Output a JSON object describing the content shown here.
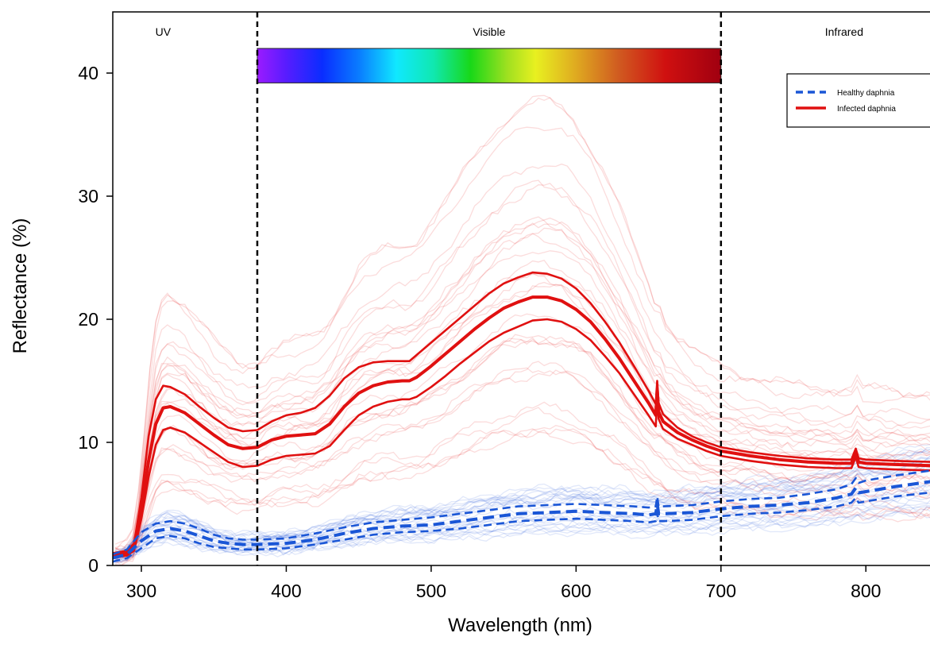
{
  "chart_data": {
    "type": "line",
    "title": "",
    "xlabel": "Wavelength (nm)",
    "ylabel": "Reflectance (%)",
    "xlim": [
      280,
      850
    ],
    "ylim": [
      0,
      45
    ],
    "xticks": [
      300,
      400,
      500,
      600,
      700,
      800
    ],
    "yticks": [
      0,
      10,
      20,
      30,
      40
    ],
    "grid": false,
    "legend_position": "top-right",
    "region_boundaries": [
      380,
      700
    ],
    "regions": [
      {
        "label": "UV",
        "x": 315
      },
      {
        "label": "Visible",
        "x": 540
      },
      {
        "label": "Infrared",
        "x": 785
      }
    ],
    "spectrum_bar": {
      "x_start": 380,
      "x_end": 700,
      "y_bottom": 39.2,
      "y_top": 42
    },
    "legend": [
      {
        "label": "Healthy daphnia",
        "color": "#1a56d6",
        "style": "dashed"
      },
      {
        "label": "Infected daphnia",
        "color": "#e01010",
        "style": "solid"
      }
    ],
    "series": [
      {
        "name": "Infected daphnia",
        "role": "mean",
        "color": "#e01010",
        "style": "solid",
        "x": [
          280,
          290,
          295,
          300,
          305,
          310,
          315,
          320,
          330,
          340,
          350,
          360,
          370,
          380,
          390,
          400,
          410,
          420,
          430,
          440,
          450,
          460,
          470,
          480,
          485,
          490,
          500,
          510,
          520,
          530,
          540,
          550,
          560,
          570,
          580,
          590,
          600,
          610,
          620,
          630,
          640,
          650,
          655,
          656,
          657,
          660,
          670,
          680,
          690,
          700,
          720,
          740,
          760,
          780,
          790,
          793,
          795,
          800,
          820,
          850
        ],
        "y": [
          0.8,
          1.0,
          1.5,
          4.5,
          8.5,
          11.5,
          12.8,
          12.9,
          12.4,
          11.5,
          10.6,
          9.8,
          9.5,
          9.6,
          10.2,
          10.5,
          10.6,
          10.7,
          11.5,
          12.9,
          14.0,
          14.6,
          14.9,
          15.0,
          15.0,
          15.3,
          16.2,
          17.2,
          18.2,
          19.2,
          20.1,
          20.9,
          21.4,
          21.8,
          21.8,
          21.5,
          20.8,
          19.8,
          18.4,
          16.8,
          15.0,
          13.2,
          12.2,
          14.3,
          12.5,
          11.7,
          10.8,
          10.2,
          9.7,
          9.3,
          8.9,
          8.6,
          8.4,
          8.3,
          8.3,
          9.2,
          8.4,
          8.3,
          8.2,
          8.1
        ]
      },
      {
        "name": "Infected daphnia",
        "role": "upper",
        "color": "#e01010",
        "style": "solid",
        "x": [
          280,
          290,
          295,
          300,
          305,
          310,
          315,
          320,
          330,
          340,
          350,
          360,
          370,
          380,
          390,
          400,
          410,
          420,
          430,
          440,
          450,
          460,
          470,
          480,
          485,
          490,
          500,
          510,
          520,
          530,
          540,
          550,
          560,
          570,
          580,
          590,
          600,
          610,
          620,
          630,
          640,
          650,
          655,
          656,
          657,
          660,
          670,
          680,
          690,
          700,
          720,
          740,
          760,
          780,
          790,
          793,
          795,
          800,
          820,
          850
        ],
        "y": [
          1.0,
          1.2,
          1.8,
          5.5,
          10.5,
          13.5,
          14.6,
          14.5,
          13.9,
          12.9,
          12.0,
          11.2,
          10.9,
          11.0,
          11.7,
          12.2,
          12.4,
          12.8,
          13.8,
          15.2,
          16.1,
          16.5,
          16.6,
          16.6,
          16.6,
          17.1,
          18.1,
          19.1,
          20.1,
          21.1,
          22.1,
          22.9,
          23.4,
          23.8,
          23.7,
          23.3,
          22.5,
          21.3,
          19.8,
          18.1,
          16.2,
          14.2,
          13.1,
          15.0,
          13.2,
          12.3,
          11.2,
          10.5,
          10.0,
          9.6,
          9.2,
          8.9,
          8.7,
          8.6,
          8.6,
          9.5,
          8.7,
          8.6,
          8.5,
          8.4
        ]
      },
      {
        "name": "Infected daphnia",
        "role": "lower",
        "color": "#e01010",
        "style": "solid",
        "x": [
          280,
          290,
          295,
          300,
          305,
          310,
          315,
          320,
          330,
          340,
          350,
          360,
          370,
          380,
          390,
          400,
          410,
          420,
          430,
          440,
          450,
          460,
          470,
          480,
          485,
          490,
          500,
          510,
          520,
          530,
          540,
          550,
          560,
          570,
          580,
          590,
          600,
          610,
          620,
          630,
          640,
          650,
          655,
          656,
          657,
          660,
          670,
          680,
          690,
          700,
          720,
          740,
          760,
          780,
          790,
          793,
          795,
          800,
          820,
          850
        ],
        "y": [
          0.6,
          0.8,
          1.2,
          3.8,
          7.2,
          9.8,
          11.0,
          11.2,
          10.8,
          10.0,
          9.2,
          8.4,
          8.0,
          8.1,
          8.6,
          8.9,
          9.0,
          9.1,
          9.7,
          11.0,
          12.2,
          12.9,
          13.3,
          13.5,
          13.5,
          13.7,
          14.5,
          15.4,
          16.4,
          17.3,
          18.2,
          18.9,
          19.4,
          19.9,
          20.0,
          19.8,
          19.2,
          18.3,
          17.0,
          15.6,
          13.9,
          12.2,
          11.3,
          13.7,
          11.9,
          11.1,
          10.3,
          9.8,
          9.3,
          8.9,
          8.5,
          8.2,
          8.0,
          7.9,
          7.9,
          8.8,
          8.0,
          7.9,
          7.8,
          7.7
        ]
      },
      {
        "name": "Healthy daphnia",
        "role": "mean",
        "color": "#1a56d6",
        "style": "dashed",
        "x": [
          280,
          290,
          300,
          310,
          320,
          330,
          340,
          350,
          360,
          370,
          380,
          400,
          420,
          440,
          460,
          480,
          500,
          520,
          540,
          560,
          580,
          600,
          620,
          640,
          650,
          655,
          656,
          657,
          660,
          680,
          700,
          720,
          740,
          760,
          780,
          790,
          793,
          795,
          800,
          820,
          850
        ],
        "y": [
          0.6,
          0.9,
          2.0,
          2.8,
          3.0,
          2.8,
          2.4,
          2.0,
          1.8,
          1.7,
          1.7,
          1.8,
          2.1,
          2.6,
          3.0,
          3.2,
          3.3,
          3.6,
          3.9,
          4.2,
          4.3,
          4.4,
          4.3,
          4.2,
          4.1,
          4.2,
          5.0,
          4.2,
          4.2,
          4.3,
          4.6,
          4.8,
          4.9,
          5.1,
          5.5,
          5.8,
          6.3,
          5.9,
          6.0,
          6.4,
          6.9
        ]
      },
      {
        "name": "Healthy daphnia",
        "role": "upper",
        "color": "#1a56d6",
        "style": "dashed",
        "x": [
          280,
          290,
          300,
          310,
          320,
          330,
          340,
          350,
          360,
          370,
          380,
          400,
          420,
          440,
          460,
          480,
          500,
          520,
          540,
          560,
          580,
          600,
          620,
          640,
          650,
          655,
          656,
          657,
          660,
          680,
          700,
          720,
          740,
          760,
          780,
          790,
          793,
          795,
          800,
          820,
          850
        ],
        "y": [
          0.9,
          1.3,
          2.7,
          3.4,
          3.6,
          3.4,
          3.0,
          2.5,
          2.2,
          2.1,
          2.1,
          2.2,
          2.6,
          3.1,
          3.5,
          3.7,
          3.9,
          4.2,
          4.5,
          4.8,
          4.9,
          5.0,
          4.9,
          4.8,
          4.7,
          4.8,
          5.6,
          4.8,
          4.8,
          4.9,
          5.2,
          5.4,
          5.5,
          5.8,
          6.2,
          6.6,
          7.1,
          6.7,
          6.9,
          7.3,
          7.8
        ]
      },
      {
        "name": "Healthy daphnia",
        "role": "lower",
        "color": "#1a56d6",
        "style": "dashed",
        "x": [
          280,
          290,
          300,
          310,
          320,
          330,
          340,
          350,
          360,
          370,
          380,
          400,
          420,
          440,
          460,
          480,
          500,
          520,
          540,
          560,
          580,
          600,
          620,
          640,
          650,
          655,
          656,
          657,
          660,
          680,
          700,
          720,
          740,
          760,
          780,
          790,
          793,
          795,
          800,
          820,
          850
        ],
        "y": [
          0.3,
          0.6,
          1.4,
          2.2,
          2.4,
          2.2,
          1.8,
          1.5,
          1.4,
          1.3,
          1.3,
          1.4,
          1.7,
          2.1,
          2.5,
          2.7,
          2.8,
          3.0,
          3.3,
          3.6,
          3.7,
          3.8,
          3.7,
          3.6,
          3.5,
          3.6,
          4.3,
          3.6,
          3.6,
          3.7,
          4.0,
          4.2,
          4.3,
          4.5,
          4.8,
          5.1,
          5.5,
          5.1,
          5.2,
          5.6,
          6.0
        ]
      }
    ]
  }
}
